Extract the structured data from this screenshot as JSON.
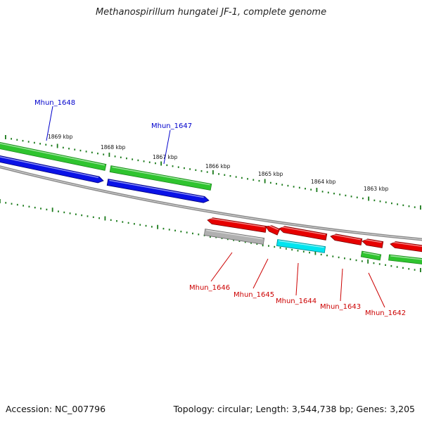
{
  "title": "Methanospirillum hungatei JF-1, complete genome",
  "footer": {
    "accession": "Accession: NC_007796",
    "summary": "Topology: circular; Length: 3,544,738 bp; Genes: 3,205"
  },
  "colors": {
    "forward_cds": "#0a12e6",
    "reverse_cds": "#e60000",
    "gene_forward": "#2fc42f",
    "gene_forward_dark": "#1a8a1a",
    "cyan_feature": "#00e5ef",
    "gray_feature": "#b0b0b0",
    "backbone": "#8a8a8a",
    "tick": "#1a7a1a",
    "forward_label": "#0000cc",
    "reverse_label": "#cc0000"
  },
  "scale_labels": [
    "1869 kbp",
    "1868 kbp",
    "1867 kbp",
    "1866 kbp",
    "1865 kbp",
    "1864 kbp",
    "1863 kbp"
  ],
  "genes": {
    "forward": [
      "Mhun_1648",
      "Mhun_1647"
    ],
    "reverse": [
      "Mhun_1646",
      "Mhun_1645",
      "Mhun_1644",
      "Mhun_1643",
      "Mhun_1642"
    ]
  }
}
